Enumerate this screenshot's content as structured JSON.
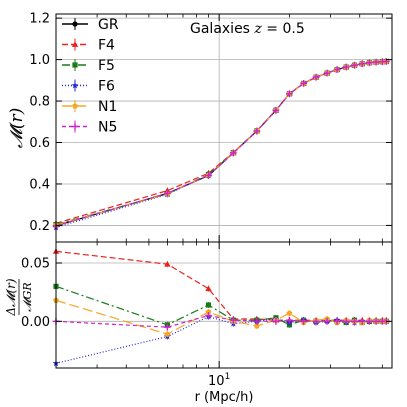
{
  "chart_data": [
    {
      "type": "line",
      "panel": "top",
      "annotation": "Galaxies z = 0.5",
      "ylabel": "𝓜(r)",
      "xscale": "log",
      "xlim": [
        2.0,
        55.0
      ],
      "ylim": [
        0.12,
        1.22
      ],
      "yticks": [
        0.2,
        0.4,
        0.6,
        0.8,
        1.0,
        1.2
      ],
      "ytick_labels": [
        "0.2",
        "0.4",
        "0.6",
        "0.8",
        "1.0",
        "1.2"
      ],
      "grid": true,
      "legend_position": "top-left",
      "x": [
        2.0,
        6.0,
        9.0,
        11.5,
        14.5,
        17.5,
        20.0,
        23.0,
        26.0,
        29.0,
        32.0,
        35.0,
        38.0,
        41.0,
        44.0,
        47.0,
        50.0,
        52.0
      ],
      "series": [
        {
          "name": "GR",
          "color": "#000000",
          "dash": "",
          "marker": "circle",
          "values": [
            0.198,
            0.355,
            0.44,
            0.55,
            0.655,
            0.755,
            0.835,
            0.885,
            0.915,
            0.935,
            0.952,
            0.964,
            0.973,
            0.98,
            0.985,
            0.988,
            0.99,
            0.991
          ]
        },
        {
          "name": "F4",
          "color": "#e8231c",
          "dash": "6,3",
          "marker": "triangle",
          "values": [
            0.21,
            0.368,
            0.452,
            0.552,
            0.657,
            0.756,
            0.836,
            0.886,
            0.916,
            0.936,
            0.953,
            0.965,
            0.974,
            0.981,
            0.986,
            0.989,
            0.991,
            0.992
          ]
        },
        {
          "name": "F5",
          "color": "#1a7a1a",
          "dash": "8,3,2,3",
          "marker": "square",
          "values": [
            0.204,
            0.352,
            0.446,
            0.551,
            0.656,
            0.756,
            0.835,
            0.885,
            0.915,
            0.935,
            0.952,
            0.964,
            0.973,
            0.98,
            0.985,
            0.988,
            0.99,
            0.991
          ]
        },
        {
          "name": "F6",
          "color": "#2424d6",
          "dash": "1,2",
          "marker": "star",
          "values": [
            0.19,
            0.35,
            0.442,
            0.549,
            0.655,
            0.755,
            0.835,
            0.885,
            0.915,
            0.935,
            0.952,
            0.964,
            0.973,
            0.98,
            0.985,
            0.988,
            0.99,
            0.991
          ]
        },
        {
          "name": "N1",
          "color": "#f5a623",
          "dash": "10,4",
          "marker": "pentagon",
          "values": [
            0.201,
            0.352,
            0.443,
            0.55,
            0.655,
            0.755,
            0.835,
            0.885,
            0.915,
            0.935,
            0.952,
            0.964,
            0.973,
            0.98,
            0.985,
            0.988,
            0.99,
            0.991
          ]
        },
        {
          "name": "N5",
          "color": "#cc22cc",
          "dash": "4,3",
          "marker": "plus",
          "values": [
            0.198,
            0.355,
            0.441,
            0.55,
            0.655,
            0.755,
            0.835,
            0.885,
            0.915,
            0.935,
            0.952,
            0.964,
            0.973,
            0.98,
            0.985,
            0.988,
            0.99,
            0.991
          ]
        }
      ]
    },
    {
      "type": "line",
      "panel": "bottom",
      "ylabel_numerator": "Δ𝓜(r)",
      "ylabel_denominator": "𝓜GR",
      "xlabel": "r (Mpc/h)",
      "xscale": "log",
      "xlim": [
        2.0,
        55.0
      ],
      "ylim": [
        -0.04,
        0.068
      ],
      "yticks": [
        0.0,
        0.05
      ],
      "ytick_labels": [
        "0.00",
        "0.05"
      ],
      "xtick_major_label": "10¹",
      "grid": true,
      "x": [
        2.0,
        6.0,
        9.0,
        11.5,
        14.5,
        17.5,
        20.0,
        23.0,
        26.0,
        29.0,
        32.0,
        35.0,
        38.0,
        41.0,
        44.0,
        47.0,
        50.0,
        52.0
      ],
      "series": [
        {
          "name": "F4",
          "color": "#e8231c",
          "dash": "6,3",
          "marker": "triangle",
          "values": [
            0.06,
            0.049,
            0.028,
            0.002,
            0.002,
            0.001,
            0.001,
            0.001,
            0.001,
            0.001,
            0.001,
            0.001,
            0.001,
            0.001,
            0.001,
            0.001,
            0.001,
            0.001
          ]
        },
        {
          "name": "F5",
          "color": "#1a7a1a",
          "dash": "8,3,2,3",
          "marker": "square",
          "values": [
            0.03,
            -0.003,
            0.014,
            0.001,
            0.001,
            0.003,
            -0.003,
            0.001,
            0.0,
            0.001,
            0.0,
            -0.001,
            0.001,
            -0.001,
            0.0,
            0.0,
            0.0,
            0.0
          ]
        },
        {
          "name": "F6",
          "color": "#2424d6",
          "dash": "1,2",
          "marker": "star",
          "values": [
            -0.036,
            -0.013,
            0.004,
            -0.002,
            0.0,
            0.002,
            -0.001,
            0.001,
            -0.001,
            0.0,
            0.001,
            0.0,
            -0.001,
            0.0,
            0.0,
            0.0,
            0.0,
            0.0
          ]
        },
        {
          "name": "N1",
          "color": "#f5a623",
          "dash": "10,4",
          "marker": "pentagon",
          "values": [
            0.018,
            -0.011,
            0.008,
            0.0,
            -0.004,
            0.001,
            0.007,
            -0.001,
            0.001,
            0.002,
            -0.001,
            0.001,
            0.0,
            -0.001,
            0.001,
            0.0,
            0.0,
            0.0
          ]
        },
        {
          "name": "N5",
          "color": "#cc22cc",
          "dash": "4,3",
          "marker": "plus",
          "values": [
            0.0,
            -0.005,
            0.005,
            0.001,
            0.0,
            0.0,
            0.001,
            0.0,
            0.0,
            0.0,
            0.0,
            0.0,
            0.0,
            0.0,
            0.0,
            0.0,
            0.0,
            0.0
          ]
        }
      ]
    }
  ]
}
